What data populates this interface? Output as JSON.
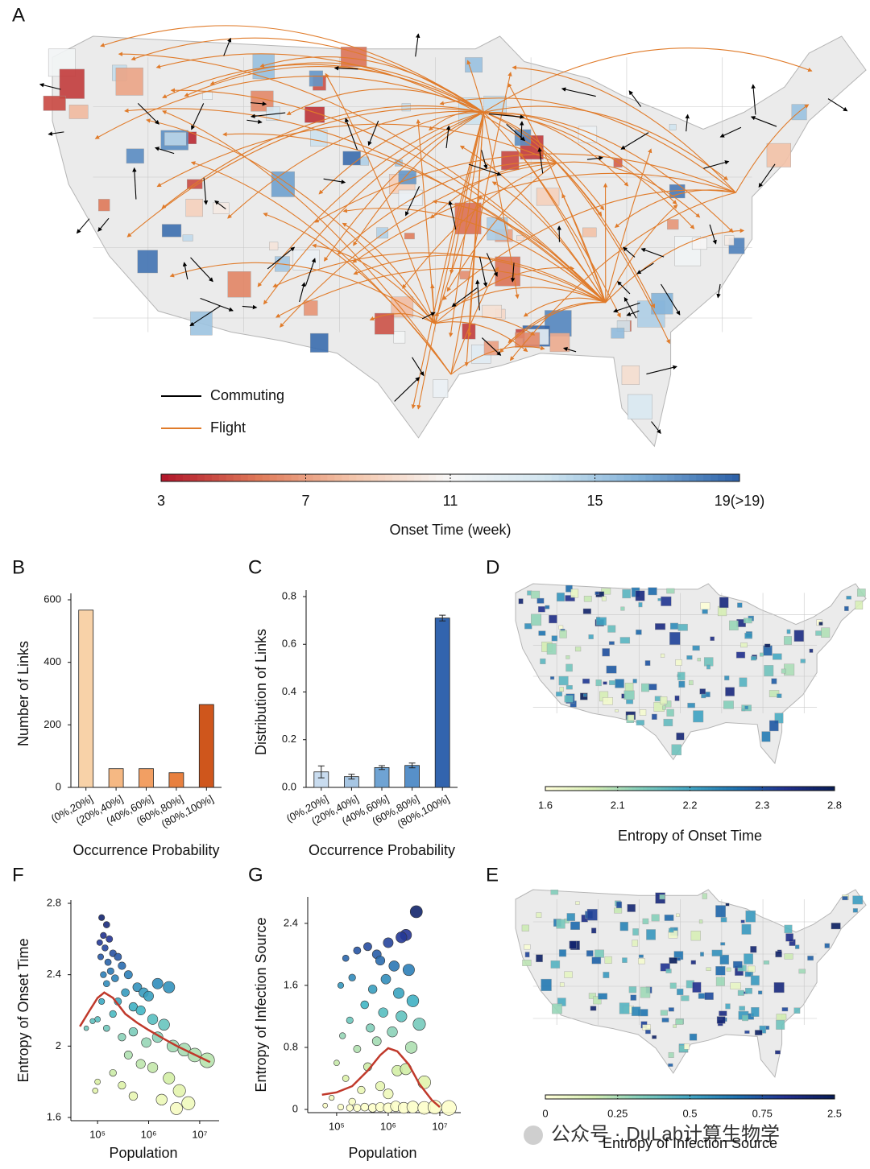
{
  "chart_data": [
    {
      "type": "map",
      "panel": "A",
      "series": [
        {
          "name": "Commuting",
          "color": "#000000"
        },
        {
          "name": "Flight",
          "color": "#e07b2a"
        }
      ],
      "colorbar": {
        "label": "Onset Time (week)",
        "lim": [
          3,
          19
        ],
        "ticks": [
          3,
          7,
          11,
          15,
          {
            "value": 19,
            "label": "19(>19)"
          }
        ],
        "colors": [
          "#b2182b",
          "#e07b5a",
          "#f4c7ad",
          "#f7f7f7",
          "#d1e5f0",
          "#7fb0d8",
          "#2f62a8"
        ]
      }
    },
    {
      "type": "bar",
      "panel": "B",
      "ylabel": "Number of Links",
      "xlabel": "Occurrence Probability",
      "categories": [
        "(0%,20%]",
        "(20%,40%]",
        "(40%,60%]",
        "(60%,80%]",
        "(80%,100%]"
      ],
      "values": [
        567,
        60,
        60,
        47,
        265
      ],
      "colors": [
        "#f8d2a8",
        "#f5b883",
        "#f29f63",
        "#e8803f",
        "#cf561c"
      ],
      "ylim": [
        0,
        600
      ],
      "yticks": [
        0,
        200,
        400,
        600
      ]
    },
    {
      "type": "bar",
      "panel": "C",
      "ylabel": "Distribution of Links",
      "xlabel": "Occurrence Probability",
      "categories": [
        "(0%,20%]",
        "(20%,40%]",
        "(40%,60%]",
        "(60%,80%]",
        "(80%,100%]"
      ],
      "values": [
        0.065,
        0.045,
        0.083,
        0.092,
        0.71
      ],
      "errors": [
        0.025,
        0.01,
        0.008,
        0.01,
        0.012
      ],
      "colors": [
        "#c9dcef",
        "#a7c6e3",
        "#6fa3d3",
        "#5790c9",
        "#3264ae"
      ],
      "ylim": [
        0,
        0.8
      ],
      "yticks": [
        {
          "value": 0,
          "label": "0.0"
        },
        0.2,
        0.4,
        0.6,
        0.8
      ]
    },
    {
      "type": "map",
      "panel": "D",
      "colorbar": {
        "label": "Entropy of Onset Time",
        "ticks": [
          1.6,
          2.1,
          2.2,
          2.3,
          2.8
        ],
        "colors": [
          "#ffffd9",
          "#d5eeb3",
          "#7fcdbb",
          "#41a6c4",
          "#1d71b0",
          "#21308f",
          "#081d58"
        ]
      }
    },
    {
      "type": "map",
      "panel": "E",
      "colorbar": {
        "label": "Entropy of Infection Source",
        "ticks": [
          0,
          0.25,
          0.5,
          0.75,
          2.5
        ],
        "colors": [
          "#ffffd9",
          "#d5eeb3",
          "#7fcdbb",
          "#41a6c4",
          "#1d71b0",
          "#21308f",
          "#081d58"
        ]
      }
    },
    {
      "type": "scatter",
      "panel": "F",
      "ylabel": "Entropy of Onset Time",
      "xlabel": "Population",
      "log_x": true,
      "xlim": [
        30000,
        24000000
      ],
      "xticks": [
        {
          "value": 100000,
          "label": "10⁵"
        },
        {
          "value": 1000000,
          "label": "10⁶"
        },
        {
          "value": 10000000,
          "label": "10⁷"
        }
      ],
      "ylim": [
        1.6,
        2.8
      ],
      "yticks": [
        1.6,
        2,
        2.4,
        2.8
      ],
      "colors": [
        "#ffffcc",
        "#d9f0a3",
        "#a1dab4",
        "#41b6c4",
        "#2c7fb8",
        "#253494",
        "#081d58"
      ],
      "x": [
        120000,
        150000,
        130000,
        110000,
        170000,
        140000,
        200000,
        250000,
        115000,
        160000,
        300000,
        180000,
        400000,
        130000,
        220000,
        2500000,
        1500000,
        600000,
        150000,
        350000,
        800000,
        1000000,
        120000,
        250000,
        500000,
        200000,
        700000,
        100000,
        80000,
        1200000,
        2000000,
        60000,
        150000,
        300000,
        500000,
        900000,
        1500000,
        3000000,
        5000000,
        8000000,
        14000000,
        400000,
        700000,
        1200000,
        100000,
        200000,
        2500000,
        4000000,
        1800000,
        500000,
        3500000,
        6000000,
        90000,
        300000
      ],
      "values": [
        2.72,
        2.68,
        2.62,
        2.58,
        2.6,
        2.55,
        2.52,
        2.5,
        2.5,
        2.47,
        2.45,
        2.42,
        2.4,
        2.4,
        2.38,
        2.33,
        2.35,
        2.33,
        2.35,
        2.3,
        2.3,
        2.28,
        2.25,
        2.25,
        2.22,
        2.18,
        2.2,
        2.15,
        2.14,
        2.15,
        2.12,
        2.1,
        2.1,
        2.05,
        2.08,
        2.02,
        2.05,
        2.0,
        1.98,
        1.95,
        1.92,
        1.95,
        1.9,
        1.88,
        1.8,
        1.85,
        1.82,
        1.75,
        1.7,
        1.72,
        1.65,
        1.68,
        1.75,
        1.78
      ],
      "curve": {
        "color": "#c0392b",
        "x": [
          45000,
          70000,
          100000,
          135000,
          200000,
          350000,
          600000,
          1000000,
          2000000,
          3600000,
          7000000,
          16000000
        ],
        "values": [
          2.11,
          2.2,
          2.27,
          2.3,
          2.27,
          2.18,
          2.13,
          2.09,
          2.04,
          2.0,
          1.96,
          1.91
        ]
      }
    },
    {
      "type": "scatter",
      "panel": "G",
      "ylabel": "Entropy of Infection Source",
      "xlabel": "Population",
      "log_x": true,
      "xlim": [
        27500,
        25500000
      ],
      "xticks": [
        {
          "value": 100000,
          "label": "10⁵"
        },
        {
          "value": 1000000,
          "label": "10⁶"
        },
        {
          "value": 10000000,
          "label": "10⁷"
        }
      ],
      "ylim": [
        0,
        2.7
      ],
      "yticks": [
        0,
        0.8,
        1.6,
        2.4
      ],
      "colors": [
        "#ffffcc",
        "#d9f0a3",
        "#a1dab4",
        "#41b6c4",
        "#2c7fb8",
        "#253494",
        "#081d58"
      ],
      "x": [
        3500000,
        2200000,
        1800000,
        1000000,
        400000,
        600000,
        250000,
        150000,
        700000,
        1300000,
        2500000,
        200000,
        900000,
        120000,
        500000,
        1600000,
        3000000,
        350000,
        800000,
        1800000,
        4000000,
        180000,
        450000,
        1200000,
        130000,
        600000,
        2800000,
        250000,
        100000,
        400000,
        1500000,
        2200000,
        5000000,
        150000,
        700000,
        300000,
        1000000,
        80000,
        200000,
        60000,
        120000,
        180000,
        250000,
        350000,
        500000,
        700000,
        1000000,
        1400000,
        2000000,
        3000000,
        5000000,
        8000000,
        15000000
      ],
      "values": [
        2.55,
        2.25,
        2.22,
        2.15,
        2.1,
        2.0,
        2.05,
        1.95,
        1.92,
        1.85,
        1.8,
        1.7,
        1.68,
        1.6,
        1.55,
        1.5,
        1.4,
        1.35,
        1.25,
        1.2,
        1.1,
        1.15,
        1.05,
        1.0,
        0.95,
        0.88,
        0.8,
        0.78,
        0.6,
        0.55,
        0.5,
        0.52,
        0.35,
        0.4,
        0.3,
        0.25,
        0.2,
        0.15,
        0.1,
        0.05,
        0.03,
        0.02,
        0.02,
        0.03,
        0.02,
        0.03,
        0.02,
        0.04,
        0.02,
        0.03,
        0.02,
        0.03,
        0.02
      ],
      "curve": {
        "color": "#c0392b",
        "x": [
          52000,
          100000,
          200000,
          400000,
          700000,
          1000000,
          1500000,
          2500000,
          4000000,
          7000000,
          10000000
        ],
        "values": [
          0.19,
          0.22,
          0.3,
          0.5,
          0.7,
          0.79,
          0.75,
          0.58,
          0.33,
          0.12,
          0.03
        ]
      }
    }
  ],
  "watermark": "公众号 · DuLab计算生物学"
}
